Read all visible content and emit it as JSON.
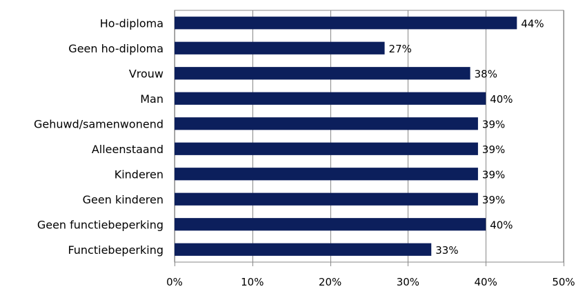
{
  "chart_data": {
    "type": "bar",
    "orientation": "horizontal",
    "categories": [
      "Ho-diploma",
      "Geen ho-diploma",
      "Vrouw",
      "Man",
      "Gehuwd/samenwonend",
      "Alleenstaand",
      "Kinderen",
      "Geen kinderen",
      "Geen functiebeperking",
      "Functiebeperking"
    ],
    "values": [
      44,
      27,
      38,
      40,
      39,
      39,
      39,
      39,
      40,
      33
    ],
    "value_labels": [
      "44%",
      "27%",
      "38%",
      "40%",
      "39%",
      "39%",
      "39%",
      "39%",
      "40%",
      "33%"
    ],
    "xlim": [
      0,
      50
    ],
    "xticks": [
      0,
      10,
      20,
      30,
      40,
      50
    ],
    "xtick_labels": [
      "0%",
      "10%",
      "20%",
      "30%",
      "40%",
      "50%"
    ],
    "title": "",
    "xlabel": "",
    "ylabel": "",
    "grid": "vertical",
    "legend": "none",
    "bar_color": "#0c1f5c",
    "grid_color": "#888888"
  }
}
